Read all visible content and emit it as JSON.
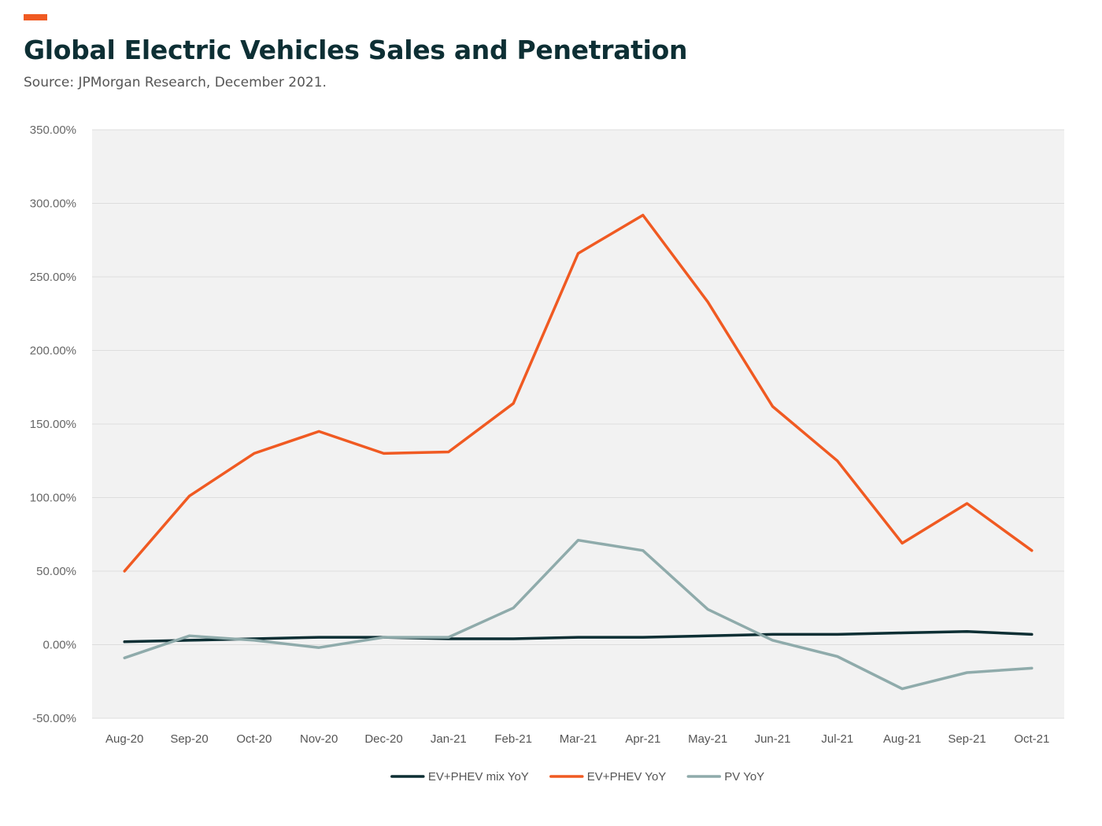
{
  "header": {
    "title": "Global Electric Vehicles Sales and Penetration",
    "subtitle": "Source: JPMorgan Research, December 2021.",
    "accent_color": "#f05a22"
  },
  "chart_data": {
    "type": "line",
    "title": "Global Electric Vehicles Sales and Penetration",
    "subtitle": "Source: JPMorgan Research, December 2021.",
    "xlabel": "",
    "ylabel": "",
    "categories": [
      "Aug-20",
      "Sep-20",
      "Oct-20",
      "Nov-20",
      "Dec-20",
      "Jan-21",
      "Feb-21",
      "Mar-21",
      "Apr-21",
      "May-21",
      "Jun-21",
      "Jul-21",
      "Aug-21",
      "Sep-21",
      "Oct-21"
    ],
    "ylim": [
      -50,
      350
    ],
    "yticks": [
      -50,
      0,
      50,
      100,
      150,
      200,
      250,
      300,
      350
    ],
    "ytick_labels": [
      "-50.00%",
      "0.00%",
      "50.00%",
      "100.00%",
      "150.00%",
      "200.00%",
      "250.00%",
      "300.00%",
      "350.00%"
    ],
    "grid": true,
    "legend_position": "bottom-center",
    "plot_background": "#f2f2f2",
    "series": [
      {
        "name": "EV+PHEV mix YoY",
        "color": "#0d2f34",
        "values": [
          2,
          3,
          4,
          5,
          5,
          4,
          4,
          5,
          5,
          6,
          7,
          7,
          8,
          9,
          7
        ]
      },
      {
        "name": "EV+PHEV YoY",
        "color": "#f05a22",
        "values": [
          50,
          101,
          130,
          145,
          130,
          131,
          164,
          266,
          292,
          233,
          162,
          125,
          69,
          96,
          64
        ]
      },
      {
        "name": "PV YoY",
        "color": "#8fabab",
        "values": [
          -9,
          6,
          3,
          -2,
          5,
          5,
          25,
          71,
          64,
          24,
          3,
          -8,
          -30,
          -19,
          -16
        ]
      }
    ]
  }
}
